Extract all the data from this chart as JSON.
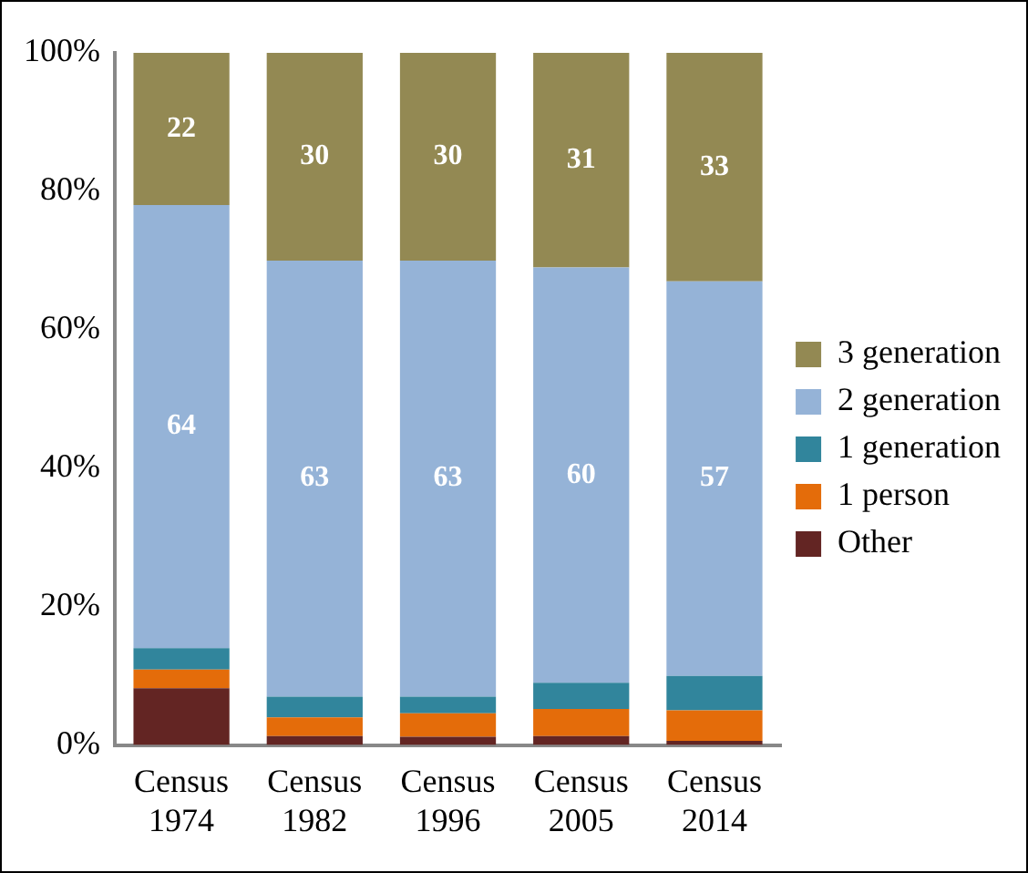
{
  "chart_data": {
    "type": "bar",
    "stacked": true,
    "categories": [
      "Census 1974",
      "Census 1982",
      "Census 1996",
      "Census 2005",
      "Census 2014"
    ],
    "series": [
      {
        "name": "Other",
        "color": "#632523",
        "values": [
          8.2,
          1.3,
          1.2,
          1.3,
          0.6
        ]
      },
      {
        "name": "1 person",
        "color": "#e46c0a",
        "values": [
          2.7,
          2.7,
          3.4,
          3.9,
          4.4
        ]
      },
      {
        "name": "1 generation",
        "color": "#31859c",
        "values": [
          3.1,
          3.0,
          2.4,
          3.8,
          5.0
        ]
      },
      {
        "name": "2 generation",
        "color": "#95b3d7",
        "values": [
          64,
          63,
          63,
          60,
          57
        ],
        "value_labels": [
          "64",
          "63",
          "63",
          "60",
          "57"
        ]
      },
      {
        "name": "3 generation",
        "color": "#938953",
        "values": [
          22,
          30,
          30,
          31,
          33
        ],
        "value_labels": [
          "22",
          "30",
          "30",
          "31",
          "33"
        ]
      }
    ],
    "ylim": [
      0,
      100
    ],
    "yticks": [
      {
        "value": 0,
        "label": "0%"
      },
      {
        "value": 20,
        "label": "20%"
      },
      {
        "value": 40,
        "label": "40%"
      },
      {
        "value": 60,
        "label": "60%"
      },
      {
        "value": 80,
        "label": "80%"
      },
      {
        "value": 100,
        "label": "100%"
      }
    ],
    "grid": false,
    "legend": "right"
  }
}
